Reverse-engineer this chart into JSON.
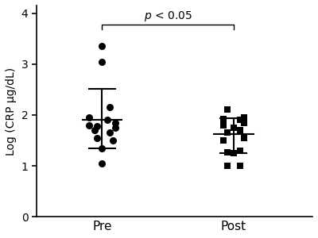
{
  "pre_points_y": [
    3.35,
    3.05,
    2.15,
    1.95,
    1.9,
    1.85,
    1.8,
    1.78,
    1.75,
    1.7,
    1.65,
    1.55,
    1.5,
    1.35,
    1.05
  ],
  "pre_points_x": [
    0.0,
    0.0,
    0.06,
    -0.1,
    0.04,
    0.1,
    -0.1,
    -0.04,
    0.1,
    -0.06,
    0.06,
    -0.04,
    0.08,
    0.0,
    0.0
  ],
  "post_points_y": [
    2.1,
    1.95,
    1.92,
    1.9,
    1.85,
    1.8,
    1.75,
    1.7,
    1.65,
    1.55,
    1.5,
    1.3,
    1.27,
    1.25,
    1.0,
    1.0
  ],
  "post_points_x": [
    -0.05,
    0.08,
    -0.08,
    0.05,
    0.08,
    -0.08,
    0.0,
    0.05,
    -0.05,
    0.08,
    -0.08,
    0.05,
    -0.05,
    0.0,
    -0.05,
    0.05
  ],
  "pre_mean": 1.9,
  "pre_sd_low": 1.35,
  "pre_sd_high": 2.52,
  "post_mean": 1.62,
  "post_sd_low": 1.25,
  "post_sd_high": 1.93,
  "pre_x": 1,
  "post_x": 2,
  "ylabel": "Log (CRP μg/dL)",
  "yticks": [
    0,
    1,
    2,
    3,
    4
  ],
  "ylim": [
    0,
    4.15
  ],
  "xlim": [
    0.5,
    2.6
  ],
  "xtick_labels": [
    "Pre",
    "Post"
  ],
  "sig_text_italic": "p",
  "sig_text_normal": " < 0.05",
  "bar_color": "#000000",
  "pre_marker": "o",
  "post_marker": "s",
  "pre_ms": 6.5,
  "post_ms": 6.0,
  "lw": 1.5,
  "mean_hw": 0.15,
  "sd_hw": 0.1,
  "bracket_y": 3.78,
  "bracket_drop": 0.1
}
